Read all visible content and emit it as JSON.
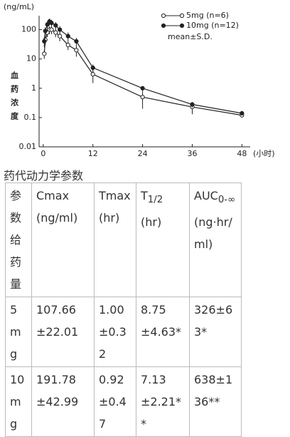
{
  "chart_data": {
    "type": "line",
    "y_unit": "(ng/mL)",
    "ylabel": "血药浓度",
    "xlabel": "(小时)",
    "note": "mean±S.D.",
    "x": [
      0.25,
      0.5,
      1,
      1.5,
      2,
      3,
      4,
      6,
      8,
      12,
      24,
      36,
      48
    ],
    "xlim": [
      -1,
      50
    ],
    "xticks": [
      0,
      12,
      24,
      36,
      48
    ],
    "ylim": [
      0.01,
      300
    ],
    "yticks": [
      100,
      10,
      1,
      0.1,
      0.01
    ],
    "log_y": true,
    "grid": false,
    "series": [
      {
        "name": "5mg (n=6)",
        "color": "#222",
        "marker": "open",
        "values": [
          15,
          45,
          80,
          100,
          100,
          80,
          60,
          30,
          20,
          3,
          0.5,
          0.23,
          0.12
        ],
        "errors": [
          5,
          15,
          25,
          30,
          30,
          25,
          20,
          10,
          8,
          1.5,
          0.3,
          0.1,
          0.02
        ]
      },
      {
        "name": "10mg (n=12)",
        "color": "#222",
        "marker": "filled",
        "values": [
          40,
          90,
          150,
          190,
          170,
          140,
          100,
          60,
          40,
          5,
          1,
          0.28,
          0.14
        ],
        "errors": [
          15,
          30,
          40,
          50,
          45,
          40,
          30,
          20,
          12,
          1.5,
          0.2,
          0.06,
          0.02
        ]
      }
    ]
  },
  "heading": "药代动力学参数",
  "table": {
    "header": [
      {
        "text": "参数给药量"
      },
      {
        "text": "Cmax",
        "unit": "(ng/ml)"
      },
      {
        "text": "Tmax",
        "unit": "(hr)"
      },
      {
        "text": "T",
        "sub": "1/2",
        "unit": "(hr)"
      },
      {
        "text": "AUC",
        "sub": "0-∞",
        "unit": "(ng·hr/ml)"
      }
    ],
    "rows": [
      [
        "5mg",
        "107.66±22.01",
        "1.00±0.32",
        "8.75±4.63*",
        "326±63*"
      ],
      [
        "10mg",
        "191.78±42.99",
        "0.92±0.47",
        "7.13±2.21**",
        "638±136**"
      ]
    ]
  }
}
